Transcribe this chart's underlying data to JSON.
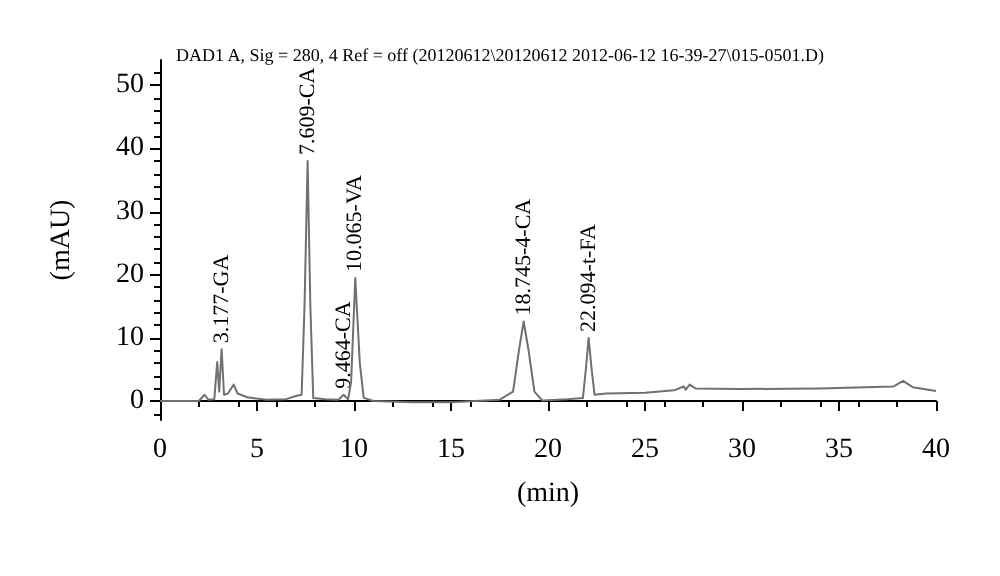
{
  "chart_data": {
    "type": "line",
    "title": "DAD1 A, Sig = 280, 4 Ref = off (20120612\\20120612 2012-06-12 16-39-27\\015-0501.D)",
    "xlabel": "(min)",
    "ylabel": "(mAU)",
    "x": [
      0,
      2.0,
      2.3,
      2.5,
      2.8,
      2.95,
      3.05,
      3.177,
      3.3,
      3.5,
      3.8,
      4.0,
      4.5,
      5.5,
      6.5,
      7.0,
      7.3,
      7.45,
      7.609,
      7.75,
      7.9,
      8.5,
      9.2,
      9.464,
      9.7,
      9.85,
      10.065,
      10.3,
      10.5,
      11,
      13,
      15,
      17.5,
      18.2,
      18.5,
      18.745,
      19.0,
      19.3,
      19.7,
      21,
      21.8,
      21.95,
      22.094,
      22.25,
      22.4,
      23,
      25,
      26.5,
      27.0,
      27.1,
      27.3,
      27.6,
      30,
      34,
      37.8,
      38.3,
      38.8,
      40
    ],
    "series": [
      {
        "color": "#707070",
        "values": [
          0,
          0,
          1.0,
          0.2,
          0.3,
          6.2,
          1.5,
          8.2,
          1.0,
          1.2,
          2.6,
          1.2,
          0.6,
          0.2,
          0.3,
          0.8,
          1.0,
          15,
          38,
          15,
          0.5,
          0.3,
          0.2,
          1.0,
          0.3,
          3,
          19.5,
          6,
          0.5,
          0,
          -0.2,
          -0.2,
          0.2,
          1.5,
          8,
          12.6,
          8,
          1.5,
          0.1,
          0.3,
          0.5,
          5,
          10,
          5,
          1.0,
          1.2,
          1.3,
          1.7,
          2.3,
          1.8,
          2.6,
          2.0,
          1.9,
          2.0,
          2.3,
          3.2,
          2.2,
          1.6
        ]
      }
    ],
    "annotations": [
      {
        "text": "3.177-GA",
        "x": 3.177,
        "y": 8.2
      },
      {
        "text": "7.609-CA",
        "x": 7.609,
        "y": 38
      },
      {
        "text": "9.464-CA",
        "x": 9.464,
        "y": 1.0
      },
      {
        "text": "10.065-VA",
        "x": 10.065,
        "y": 19.5
      },
      {
        "text": "18.745-4-CA",
        "x": 18.745,
        "y": 12.6
      },
      {
        "text": "22.094-t-FA",
        "x": 22.094,
        "y": 10
      }
    ],
    "xlim": [
      0,
      40
    ],
    "xticks": [
      0,
      5,
      10,
      15,
      20,
      25,
      30,
      35,
      40
    ],
    "ylim": [
      -3,
      54
    ],
    "yticks": [
      0,
      10,
      20,
      30,
      40,
      50
    ],
    "grid": false,
    "marker": "none",
    "line_style": "solid"
  }
}
